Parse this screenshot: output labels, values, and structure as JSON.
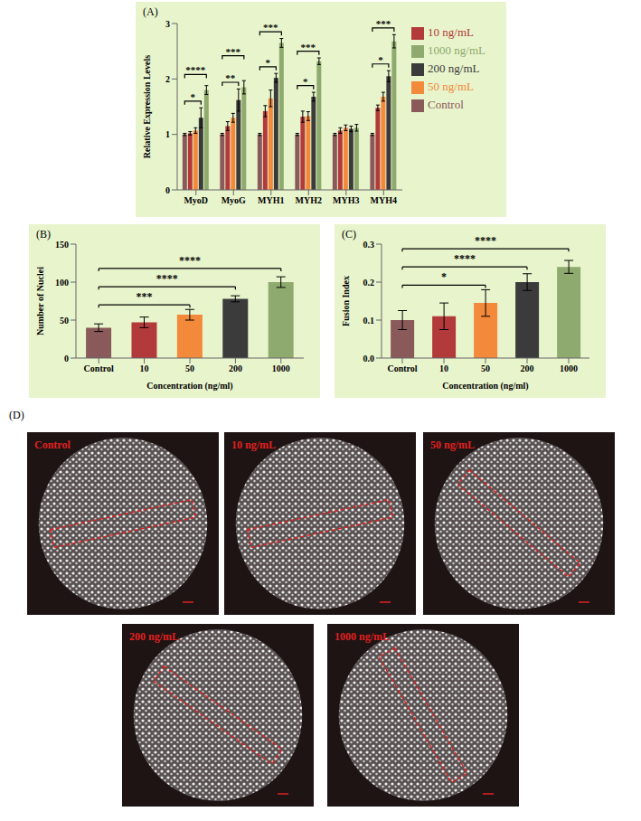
{
  "chart_data": [
    {
      "type": "bar",
      "panel_label": "(A)",
      "ylabel": "Relative Expression Levels",
      "categories": [
        "MyoD",
        "MyoG",
        "MYH1",
        "MYH2",
        "MYH3",
        "MYH4"
      ],
      "series": [
        {
          "name": "Control",
          "color": "#8a5a5a",
          "values": [
            1.0,
            1.0,
            1.0,
            1.0,
            1.0,
            1.0
          ],
          "errors": [
            0.02,
            0.02,
            0.02,
            0.02,
            0.02,
            0.02
          ]
        },
        {
          "name": "10 ng/mL",
          "color": "#b33a3a",
          "values": [
            1.02,
            1.15,
            1.42,
            1.32,
            1.07,
            1.48
          ],
          "errors": [
            0.03,
            0.08,
            0.1,
            0.1,
            0.05,
            0.05
          ]
        },
        {
          "name": "50 ng/mL",
          "color": "#f3893a",
          "values": [
            1.07,
            1.3,
            1.65,
            1.33,
            1.12,
            1.68
          ],
          "errors": [
            0.05,
            0.08,
            0.15,
            0.08,
            0.05,
            0.08
          ]
        },
        {
          "name": "200 ng/mL",
          "color": "#3b3b3b",
          "values": [
            1.3,
            1.62,
            2.02,
            1.68,
            1.1,
            2.05
          ],
          "errors": [
            0.18,
            0.2,
            0.08,
            0.08,
            0.05,
            0.1
          ]
        },
        {
          "name": "1000 ng/mL",
          "color": "#8faa6e",
          "values": [
            1.8,
            1.85,
            2.65,
            2.32,
            1.12,
            2.68
          ],
          "errors": [
            0.08,
            0.12,
            0.08,
            0.06,
            0.06,
            0.12
          ]
        }
      ],
      "ylim": [
        0,
        3
      ],
      "yticks": [
        0,
        1,
        2,
        3
      ],
      "legend": "right",
      "significance": [
        {
          "category": "MyoD",
          "from": "Control",
          "to": "200 ng/mL",
          "label": "*"
        },
        {
          "category": "MyoD",
          "from": "Control",
          "to": "1000 ng/mL",
          "label": "****"
        },
        {
          "category": "MyoG",
          "from": "Control",
          "to": "200 ng/mL",
          "label": "**"
        },
        {
          "category": "MyoG",
          "from": "Control",
          "to": "1000 ng/mL",
          "label": "***"
        },
        {
          "category": "MYH1",
          "from": "Control",
          "to": "200 ng/mL",
          "label": "*"
        },
        {
          "category": "MYH1",
          "from": "Control",
          "to": "1000 ng/mL",
          "label": "***"
        },
        {
          "category": "MYH2",
          "from": "Control",
          "to": "200 ng/mL",
          "label": "*"
        },
        {
          "category": "MYH2",
          "from": "Control",
          "to": "1000 ng/mL",
          "label": "***"
        },
        {
          "category": "MYH4",
          "from": "Control",
          "to": "200 ng/mL",
          "label": "*"
        },
        {
          "category": "MYH4",
          "from": "Control",
          "to": "1000 ng/mL",
          "label": "***"
        }
      ]
    },
    {
      "type": "bar",
      "panel_label": "(B)",
      "ylabel": "Number of Nuclei",
      "xlabel": "Concentration (ng/ml)",
      "categories": [
        "Control",
        "10",
        "50",
        "200",
        "1000"
      ],
      "values": [
        40,
        47,
        57,
        78,
        100
      ],
      "errors": [
        5,
        7,
        7,
        4,
        7
      ],
      "colors": [
        "#8a5a5a",
        "#b33a3a",
        "#f3893a",
        "#3b3b3b",
        "#8faa6e"
      ],
      "ylim": [
        0,
        150
      ],
      "yticks": [
        0,
        50,
        100,
        150
      ],
      "significance": [
        {
          "from": "Control",
          "to": "50",
          "label": "***"
        },
        {
          "from": "Control",
          "to": "200",
          "label": "****"
        },
        {
          "from": "Control",
          "to": "1000",
          "label": "****"
        }
      ]
    },
    {
      "type": "bar",
      "panel_label": "(C)",
      "ylabel": "Fusion Index",
      "xlabel": "Concentration (ng/ml)",
      "categories": [
        "Control",
        "10",
        "50",
        "200",
        "1000"
      ],
      "values": [
        0.1,
        0.11,
        0.145,
        0.2,
        0.24
      ],
      "errors": [
        0.025,
        0.035,
        0.035,
        0.022,
        0.017
      ],
      "colors": [
        "#8a5a5a",
        "#b33a3a",
        "#f3893a",
        "#3b3b3b",
        "#8faa6e"
      ],
      "ylim": [
        0,
        0.3
      ],
      "yticks": [
        {
          "value": 0,
          "label": "0.0"
        },
        0.1,
        0.2,
        0.3
      ],
      "significance": [
        {
          "from": "Control",
          "to": "50",
          "label": "*"
        },
        {
          "from": "Control",
          "to": "200",
          "label": "****"
        },
        {
          "from": "Control",
          "to": "1000",
          "label": "****"
        }
      ]
    }
  ],
  "image_panel": {
    "panel_label": "(D)",
    "captions": [
      "Control",
      "10 ng/mL",
      "50 ng/mL",
      "200 ng/mL",
      "1000 ng/mL"
    ]
  }
}
